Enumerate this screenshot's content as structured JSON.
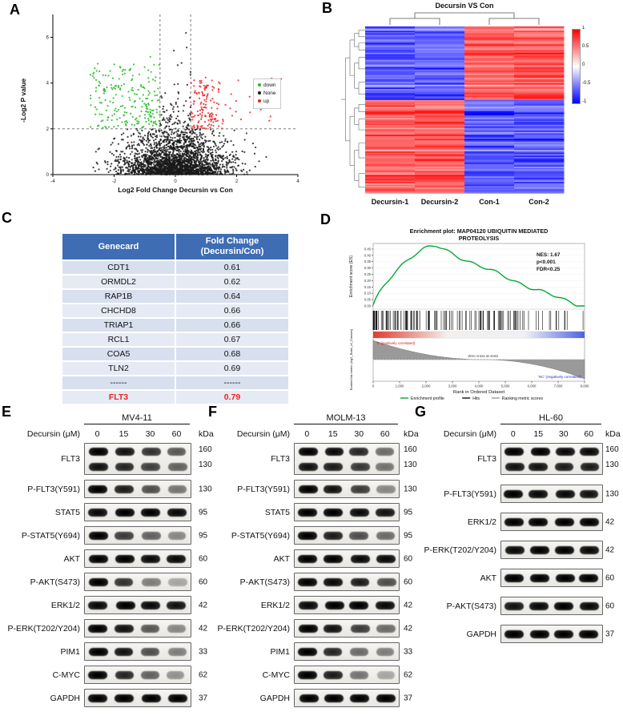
{
  "colors": {
    "accent_blue": "#3f6db4",
    "highlight_red": "#e8261f",
    "volcano_down": "#22bb22",
    "volcano_none": "#1a1a1a",
    "volcano_up": "#ee2222",
    "heat_red": "#ff0000",
    "heat_blue": "#2222ee",
    "gsea_green": "#00aa33"
  },
  "panelA": {
    "label": "A",
    "xlabel": "Log2 Fold Change Decursin vs Con",
    "ylabel": "-Log2 P value",
    "legend": [
      {
        "label": "down",
        "color": "#22bb22"
      },
      {
        "label": "None",
        "color": "#1a1a1a"
      },
      {
        "label": "up",
        "color": "#ee2222"
      }
    ],
    "x_ticks": [
      "-4",
      "-2",
      "0",
      "2",
      "4"
    ],
    "y_ticks": [
      "0",
      "2",
      "4",
      "6"
    ]
  },
  "panelB": {
    "label": "B",
    "title": "Decursin VS Con",
    "columns": [
      "Decursin-1",
      "Decursin-2",
      "Con-1",
      "Con-2"
    ],
    "colorbar_ticks": [
      "1",
      "0.5",
      "0",
      "-0.5",
      "-1"
    ]
  },
  "panelC": {
    "label": "C",
    "headers": [
      "Genecard",
      "Fold Change\n(Decursin/Con)"
    ],
    "rows": [
      {
        "gene": "CDT1",
        "fold": "0.61",
        "highlight": false
      },
      {
        "gene": "ORMDL2",
        "fold": "0.62",
        "highlight": false
      },
      {
        "gene": "RAP1B",
        "fold": "0.64",
        "highlight": false
      },
      {
        "gene": "CHCHD8",
        "fold": "0.66",
        "highlight": false
      },
      {
        "gene": "TRIAP1",
        "fold": "0.66",
        "highlight": false
      },
      {
        "gene": "RCL1",
        "fold": "0.67",
        "highlight": false
      },
      {
        "gene": "COA5",
        "fold": "0.68",
        "highlight": false
      },
      {
        "gene": "TLN2",
        "fold": "0.69",
        "highlight": false
      },
      {
        "gene": "------",
        "fold": "------",
        "highlight": false
      },
      {
        "gene": "FLT3",
        "fold": "0.79",
        "highlight": true
      }
    ]
  },
  "panelD": {
    "label": "D",
    "title_line1": "Enrichment plot: MAP04120  UBIQUITIN MEDIATED",
    "title_line2": "PROTEOLYSIS",
    "nes": "NES: 1.67",
    "pval": "p<0.001",
    "fdr": "FDR<0.25",
    "es_axis_label": "Enrichment score (ES)",
    "rank_axis_label": "Ranked list metric (log2_Ratio_of_Classes)",
    "xlabel": "Rank in Ordered Dataset",
    "pos_corr": "'0' (positively correlated)",
    "zero_cross": "Zero cross at 4162",
    "neg_corr": "'NC' (negatively correlated)",
    "legend": [
      "Enrichment profile",
      "Hits",
      "Ranking metric scores"
    ],
    "es_ticks": [
      "0.45",
      "0.40",
      "0.35",
      "0.30",
      "0.25",
      "0.20",
      "0.15",
      "0.10",
      "0.05",
      "0.00"
    ],
    "x_ticks": [
      "0",
      "1,000",
      "2,000",
      "3,000",
      "4,000",
      "5,000",
      "6,000",
      "7,000",
      "8,000"
    ]
  },
  "panelE": {
    "label": "E",
    "cell_line": "MV4-11",
    "treatment_label": "Decursin (μM)",
    "doses": [
      "0",
      "15",
      "30",
      "60"
    ],
    "kda_label": "kDa",
    "rows": [
      {
        "protein": "FLT3",
        "kda": [
          "160",
          "130"
        ],
        "lanes": [
          1,
          0.9,
          0.75,
          0.55
        ]
      },
      {
        "protein": "P-FLT3(Y591)",
        "kda": [
          "130"
        ],
        "lanes": [
          1,
          0.85,
          0.6,
          0.4
        ]
      },
      {
        "protein": "STAT5",
        "kda": [
          "95"
        ],
        "lanes": [
          0.95,
          1,
          1,
          0.95
        ]
      },
      {
        "protein": "P-STAT5(Y694)",
        "kda": [
          "95"
        ],
        "lanes": [
          1,
          0.7,
          0.5,
          0.3
        ]
      },
      {
        "protein": "AKT",
        "kda": [
          "60"
        ],
        "lanes": [
          1,
          1,
          0.95,
          0.95
        ]
      },
      {
        "protein": "P-AKT(S473)",
        "kda": [
          "60"
        ],
        "lanes": [
          1,
          0.75,
          0.35,
          0.15
        ]
      },
      {
        "protein": "ERK1/2",
        "kda": [
          "42"
        ],
        "lanes": [
          0.95,
          1,
          0.95,
          0.9
        ]
      },
      {
        "protein": "P-ERK(T202/Y204)",
        "kda": [
          "42"
        ],
        "lanes": [
          1,
          0.9,
          0.55,
          0.3
        ]
      },
      {
        "protein": "PIM1",
        "kda": [
          "33"
        ],
        "lanes": [
          1,
          0.9,
          0.6,
          0.35
        ]
      },
      {
        "protein": "C-MYC",
        "kda": [
          "62"
        ],
        "lanes": [
          1,
          0.8,
          0.5,
          0.25
        ]
      },
      {
        "protein": "GAPDH",
        "kda": [
          "37"
        ],
        "lanes": [
          1,
          1,
          1,
          1
        ]
      }
    ]
  },
  "panelF": {
    "label": "F",
    "cell_line": "MOLM-13",
    "treatment_label": "Decursin (μM)",
    "doses": [
      "0",
      "15",
      "30",
      "60"
    ],
    "kda_label": "kDa",
    "rows": [
      {
        "protein": "FLT3",
        "kda": [
          "160",
          "130"
        ],
        "lanes": [
          1,
          0.95,
          0.8,
          0.45
        ]
      },
      {
        "protein": "P-FLT3(Y591)",
        "kda": [
          "130"
        ],
        "lanes": [
          1,
          0.9,
          0.7,
          0.3
        ]
      },
      {
        "protein": "STAT5",
        "kda": [
          "95"
        ],
        "lanes": [
          1,
          1,
          0.95,
          0.9
        ]
      },
      {
        "protein": "P-STAT5(Y694)",
        "kda": [
          "95"
        ],
        "lanes": [
          1,
          0.85,
          0.6,
          0.45
        ]
      },
      {
        "protein": "AKT",
        "kda": [
          "60"
        ],
        "lanes": [
          1,
          1,
          0.95,
          0.95
        ]
      },
      {
        "protein": "P-AKT(S473)",
        "kda": [
          "60"
        ],
        "lanes": [
          1,
          0.95,
          0.85,
          0.6
        ]
      },
      {
        "protein": "ERK1/2",
        "kda": [
          "42"
        ],
        "lanes": [
          0.95,
          1,
          1,
          0.95
        ]
      },
      {
        "protein": "P-ERK(T202/Y204)",
        "kda": [
          "42"
        ],
        "lanes": [
          1,
          0.9,
          0.7,
          0.45
        ]
      },
      {
        "protein": "PIM1",
        "kda": [
          "33"
        ],
        "lanes": [
          1,
          0.8,
          0.45,
          0.35
        ]
      },
      {
        "protein": "C-MYC",
        "kda": [
          "62"
        ],
        "lanes": [
          1,
          0.85,
          0.4,
          0.15
        ]
      },
      {
        "protein": "GAPDH",
        "kda": [
          "37"
        ],
        "lanes": [
          1,
          1,
          1,
          1
        ]
      }
    ]
  },
  "panelG": {
    "label": "G",
    "cell_line": "HL-60",
    "treatment_label": "Decursin (μM)",
    "doses": [
      "0",
      "15",
      "30",
      "60"
    ],
    "kda_label": "kDa",
    "rows": [
      {
        "protein": "FLT3",
        "kda": [
          "160",
          "130"
        ],
        "lanes": [
          1,
          1,
          0.95,
          0.95
        ]
      },
      {
        "protein": "P-FLT3(Y591)",
        "kda": [
          "130"
        ],
        "lanes": [
          1,
          0.95,
          0.95,
          0.9
        ]
      },
      {
        "protein": "ERK1/2",
        "kda": [
          "42"
        ],
        "lanes": [
          1,
          1,
          1,
          1
        ]
      },
      {
        "protein": "P-ERK(T202/Y204)",
        "kda": [
          "42"
        ],
        "lanes": [
          0.95,
          1,
          1,
          0.95
        ]
      },
      {
        "protein": "AKT",
        "kda": [
          "60"
        ],
        "lanes": [
          1,
          1,
          1,
          1
        ]
      },
      {
        "protein": "P-AKT(S473)",
        "kda": [
          "60"
        ],
        "lanes": [
          0.9,
          0.95,
          1,
          0.95
        ]
      },
      {
        "protein": "GAPDH",
        "kda": [
          "37"
        ],
        "lanes": [
          1,
          1,
          1,
          1
        ]
      }
    ]
  }
}
